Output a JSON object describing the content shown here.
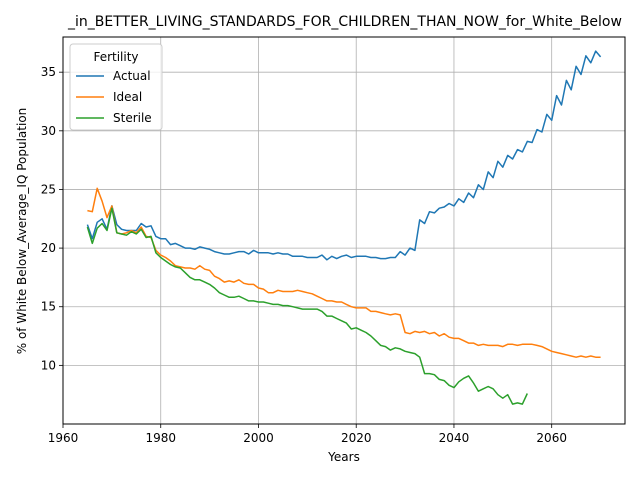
{
  "chart_data": {
    "type": "line",
    "title": "_in_BETTER_LIVING_STANDARDS_FOR_CHILDREN_THAN_NOW_for_White_Below",
    "xlabel": "Years",
    "ylabel": "% of White Below_Average_IQ Population",
    "xlim": [
      1960,
      2075
    ],
    "ylim": [
      5,
      38
    ],
    "xticks": [
      1960,
      1980,
      2000,
      2020,
      2040,
      2060
    ],
    "yticks": [
      10,
      15,
      20,
      25,
      30,
      35
    ],
    "grid": true,
    "legend": {
      "title": "Fertility",
      "placement": "top-left"
    },
    "series": [
      {
        "name": "Actual",
        "color": "#1f77b4",
        "x": [
          1965,
          1966,
          1967,
          1968,
          1969,
          1970,
          1971,
          1972,
          1973,
          1974,
          1975,
          1976,
          1977,
          1978,
          1979,
          1980,
          1981,
          1982,
          1983,
          1984,
          1985,
          1986,
          1987,
          1988,
          1989,
          1990,
          1991,
          1992,
          1993,
          1994,
          1995,
          1996,
          1997,
          1998,
          1999,
          2000,
          2001,
          2002,
          2003,
          2004,
          2005,
          2006,
          2007,
          2008,
          2009,
          2010,
          2011,
          2012,
          2013,
          2014,
          2015,
          2016,
          2017,
          2018,
          2019,
          2020,
          2021,
          2022,
          2023,
          2024,
          2025,
          2026,
          2027,
          2028,
          2029,
          2030,
          2031,
          2032,
          2033,
          2034,
          2035,
          2036,
          2037,
          2038,
          2039,
          2040,
          2041,
          2042,
          2043,
          2044,
          2045,
          2046,
          2047,
          2048,
          2049,
          2050,
          2051,
          2052,
          2053,
          2054,
          2055,
          2056,
          2057,
          2058,
          2059,
          2060,
          2061,
          2062,
          2063,
          2064,
          2065,
          2066,
          2067,
          2068,
          2069,
          2070
        ],
        "values": [
          22.0,
          20.8,
          22.2,
          22.5,
          21.6,
          23.6,
          22.0,
          21.6,
          21.5,
          21.5,
          21.5,
          22.1,
          21.8,
          21.9,
          21.0,
          20.8,
          20.8,
          20.3,
          20.4,
          20.2,
          20.0,
          20.0,
          19.9,
          20.1,
          20.0,
          19.9,
          19.7,
          19.6,
          19.5,
          19.5,
          19.6,
          19.7,
          19.7,
          19.5,
          19.8,
          19.6,
          19.6,
          19.6,
          19.5,
          19.6,
          19.5,
          19.5,
          19.3,
          19.3,
          19.3,
          19.2,
          19.2,
          19.2,
          19.4,
          19.0,
          19.3,
          19.1,
          19.3,
          19.4,
          19.2,
          19.3,
          19.3,
          19.3,
          19.2,
          19.2,
          19.1,
          19.1,
          19.2,
          19.2,
          19.7,
          19.4,
          20.0,
          19.8,
          22.4,
          22.1,
          23.1,
          23.0,
          23.4,
          23.5,
          23.8,
          23.6,
          24.2,
          23.9,
          24.7,
          24.3,
          25.4,
          25.0,
          26.5,
          26.0,
          27.4,
          26.9,
          27.9,
          27.6,
          28.4,
          28.2,
          29.1,
          29.0,
          30.1,
          29.9,
          31.4,
          30.9,
          33.0,
          32.2,
          34.3,
          33.5,
          35.5,
          34.8,
          36.4,
          35.8,
          36.8,
          36.3
        ]
      },
      {
        "name": "Ideal",
        "color": "#ff7f0e",
        "x": [
          1965,
          1966,
          1967,
          1968,
          1969,
          1970,
          1971,
          1972,
          1973,
          1974,
          1975,
          1976,
          1977,
          1978,
          1979,
          1980,
          1981,
          1982,
          1983,
          1984,
          1985,
          1986,
          1987,
          1988,
          1989,
          1990,
          1991,
          1992,
          1993,
          1994,
          1995,
          1996,
          1997,
          1998,
          1999,
          2000,
          2001,
          2002,
          2003,
          2004,
          2005,
          2006,
          2007,
          2008,
          2009,
          2010,
          2011,
          2012,
          2013,
          2014,
          2015,
          2016,
          2017,
          2018,
          2019,
          2020,
          2021,
          2022,
          2023,
          2024,
          2025,
          2026,
          2027,
          2028,
          2029,
          2030,
          2031,
          2032,
          2033,
          2034,
          2035,
          2036,
          2037,
          2038,
          2039,
          2040,
          2041,
          2042,
          2043,
          2044,
          2045,
          2046,
          2047,
          2048,
          2049,
          2050,
          2051,
          2052,
          2053,
          2054,
          2055,
          2056,
          2057,
          2058,
          2059,
          2060,
          2061,
          2062,
          2063,
          2064,
          2065,
          2066,
          2067,
          2068,
          2069,
          2070
        ],
        "values": [
          23.2,
          23.1,
          25.1,
          24.0,
          22.6,
          23.6,
          21.3,
          21.2,
          21.3,
          21.5,
          21.3,
          21.8,
          21.0,
          20.9,
          19.8,
          19.4,
          19.2,
          18.9,
          18.5,
          18.4,
          18.3,
          18.3,
          18.2,
          18.5,
          18.2,
          18.1,
          17.6,
          17.4,
          17.1,
          17.2,
          17.1,
          17.3,
          17.0,
          16.9,
          16.9,
          16.6,
          16.5,
          16.2,
          16.2,
          16.4,
          16.3,
          16.3,
          16.3,
          16.4,
          16.3,
          16.2,
          16.1,
          15.9,
          15.7,
          15.5,
          15.5,
          15.4,
          15.4,
          15.2,
          15.0,
          14.9,
          14.9,
          14.9,
          14.6,
          14.6,
          14.5,
          14.4,
          14.3,
          14.4,
          14.3,
          12.8,
          12.7,
          12.9,
          12.8,
          12.9,
          12.7,
          12.8,
          12.5,
          12.7,
          12.4,
          12.3,
          12.3,
          12.1,
          11.9,
          11.9,
          11.7,
          11.8,
          11.7,
          11.7,
          11.7,
          11.6,
          11.8,
          11.8,
          11.7,
          11.8,
          11.8,
          11.8,
          11.7,
          11.6,
          11.4,
          11.2,
          11.1,
          11.0,
          10.9,
          10.8,
          10.7,
          10.8,
          10.7,
          10.8,
          10.7,
          10.7
        ]
      },
      {
        "name": "Sterile",
        "color": "#2ca02c",
        "x": [
          1965,
          1966,
          1967,
          1968,
          1969,
          1970,
          1971,
          1972,
          1973,
          1974,
          1975,
          1976,
          1977,
          1978,
          1979,
          1980,
          1981,
          1982,
          1983,
          1984,
          1985,
          1986,
          1987,
          1988,
          1989,
          1990,
          1991,
          1992,
          1993,
          1994,
          1995,
          1996,
          1997,
          1998,
          1999,
          2000,
          2001,
          2002,
          2003,
          2004,
          2005,
          2006,
          2007,
          2008,
          2009,
          2010,
          2011,
          2012,
          2013,
          2014,
          2015,
          2016,
          2017,
          2018,
          2019,
          2020,
          2021,
          2022,
          2023,
          2024,
          2025,
          2026,
          2027,
          2028,
          2029,
          2030,
          2031,
          2032,
          2033,
          2034,
          2035,
          2036,
          2037,
          2038,
          2039,
          2040,
          2041,
          2042,
          2043,
          2044,
          2045,
          2046,
          2047,
          2048,
          2049,
          2050,
          2051,
          2052,
          2053,
          2054,
          2055
        ],
        "values": [
          21.8,
          20.4,
          21.7,
          22.1,
          21.5,
          23.4,
          21.3,
          21.2,
          21.1,
          21.4,
          21.2,
          21.6,
          20.9,
          21.0,
          19.6,
          19.2,
          18.9,
          18.6,
          18.4,
          18.3,
          17.9,
          17.5,
          17.3,
          17.3,
          17.1,
          16.9,
          16.6,
          16.2,
          16.0,
          15.8,
          15.8,
          15.9,
          15.7,
          15.5,
          15.5,
          15.4,
          15.4,
          15.3,
          15.2,
          15.2,
          15.1,
          15.1,
          15.0,
          14.9,
          14.8,
          14.8,
          14.8,
          14.8,
          14.6,
          14.2,
          14.2,
          14.0,
          13.8,
          13.6,
          13.1,
          13.2,
          13.0,
          12.8,
          12.5,
          12.1,
          11.7,
          11.6,
          11.3,
          11.5,
          11.4,
          11.2,
          11.1,
          11.0,
          10.7,
          9.3,
          9.3,
          9.2,
          8.8,
          8.7,
          8.3,
          8.1,
          8.6,
          8.9,
          9.1,
          8.5,
          7.8,
          8.0,
          8.2,
          8.0,
          7.5,
          7.2,
          7.5,
          6.7,
          6.8,
          6.7,
          7.6
        ]
      }
    ]
  }
}
